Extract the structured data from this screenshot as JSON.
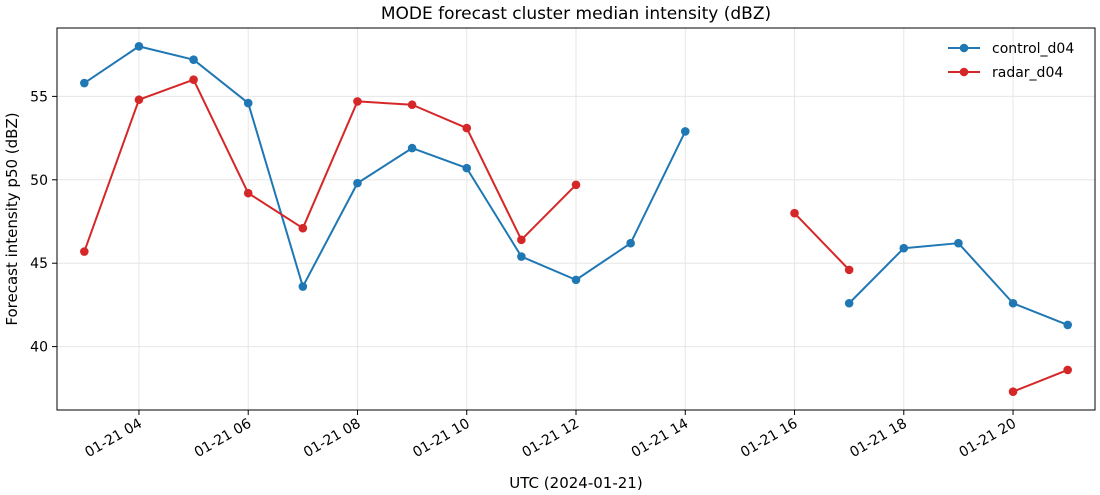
{
  "chart_data": {
    "type": "line",
    "title": "MODE forecast cluster median intensity (dBZ)",
    "xlabel": "UTC (2024-01-21)",
    "ylabel": "Forecast intensity p50 (dBZ)",
    "x_unit": "hour UTC on 2024-01-21",
    "xlim": [
      2.5,
      21.5
    ],
    "ylim": [
      36.2,
      59.1
    ],
    "x_ticks": [
      {
        "value": 4,
        "label": "01-21 04"
      },
      {
        "value": 6,
        "label": "01-21 06"
      },
      {
        "value": 8,
        "label": "01-21 08"
      },
      {
        "value": 10,
        "label": "01-21 10"
      },
      {
        "value": 12,
        "label": "01-21 12"
      },
      {
        "value": 14,
        "label": "01-21 14"
      },
      {
        "value": 16,
        "label": "01-21 16"
      },
      {
        "value": 18,
        "label": "01-21 18"
      },
      {
        "value": 20,
        "label": "01-21 20"
      }
    ],
    "y_ticks": [
      {
        "value": 40,
        "label": "40"
      },
      {
        "value": 45,
        "label": "45"
      },
      {
        "value": 50,
        "label": "50"
      },
      {
        "value": 55,
        "label": "55"
      }
    ],
    "grid": true,
    "legend_position": "top-right",
    "series": [
      {
        "name": "control_d04",
        "color": "#1f77b4",
        "points": [
          {
            "x": 3,
            "y": 55.8
          },
          {
            "x": 4,
            "y": 58.0
          },
          {
            "x": 5,
            "y": 57.2
          },
          {
            "x": 6,
            "y": 54.6
          },
          {
            "x": 7,
            "y": 43.6
          },
          {
            "x": 8,
            "y": 49.8
          },
          {
            "x": 9,
            "y": 51.9
          },
          {
            "x": 10,
            "y": 50.7
          },
          {
            "x": 11,
            "y": 45.4
          },
          {
            "x": 12,
            "y": 44.0
          },
          {
            "x": 13,
            "y": 46.2
          },
          {
            "x": 14,
            "y": 52.9
          },
          {
            "x": 15,
            "y": null
          },
          {
            "x": 16,
            "y": null
          },
          {
            "x": 17,
            "y": 42.6
          },
          {
            "x": 18,
            "y": 45.9
          },
          {
            "x": 19,
            "y": 46.2
          },
          {
            "x": 20,
            "y": 42.6
          },
          {
            "x": 21,
            "y": 41.3
          }
        ]
      },
      {
        "name": "radar_d04",
        "color": "#d62728",
        "points": [
          {
            "x": 3,
            "y": 45.7
          },
          {
            "x": 4,
            "y": 54.8
          },
          {
            "x": 5,
            "y": 56.0
          },
          {
            "x": 6,
            "y": 49.2
          },
          {
            "x": 7,
            "y": 47.1
          },
          {
            "x": 8,
            "y": 54.7
          },
          {
            "x": 9,
            "y": 54.5
          },
          {
            "x": 10,
            "y": 53.1
          },
          {
            "x": 11,
            "y": 46.4
          },
          {
            "x": 12,
            "y": 49.7
          },
          {
            "x": 13,
            "y": null
          },
          {
            "x": 14,
            "y": null
          },
          {
            "x": 15,
            "y": null
          },
          {
            "x": 16,
            "y": 48.0
          },
          {
            "x": 17,
            "y": 44.6
          },
          {
            "x": 18,
            "y": null
          },
          {
            "x": 19,
            "y": null
          },
          {
            "x": 20,
            "y": 37.3
          },
          {
            "x": 21,
            "y": 38.6
          }
        ]
      }
    ]
  }
}
